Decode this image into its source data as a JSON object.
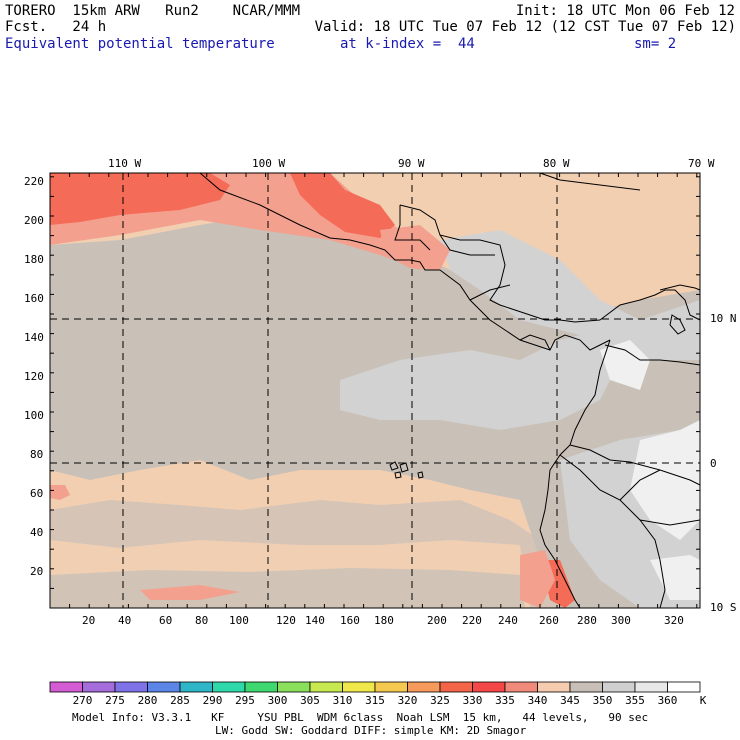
{
  "header": {
    "left_line1": "TORERO  15km ARW   Run2    NCAR/MMM",
    "left_line2": "Fcst.   24 h",
    "right_line1": "Init: 18 UTC Mon 06 Feb 12",
    "right_line2": "Valid: 18 UTC Tue 07 Feb 12 (12 CST Tue 07 Feb 12)",
    "field": "Equivalent potential temperature",
    "level": "at k-index =  44",
    "smooth": "sm= 2"
  },
  "map": {
    "lon_labels": [
      "110 W",
      "100 W",
      "90 W",
      "80 W",
      "70 W"
    ],
    "lat_labels": [
      "10 N",
      "0",
      "10 S"
    ],
    "y_ticks": [
      "220",
      "200",
      "180",
      "160",
      "140",
      "120",
      "100",
      "80",
      "60",
      "40",
      "20"
    ],
    "x_ticks": [
      "20",
      "40",
      "60",
      "80",
      "100",
      "120",
      "140",
      "160",
      "180",
      "200",
      "220",
      "240",
      "260",
      "280",
      "300",
      "320"
    ]
  },
  "colorbar": {
    "unit": "K",
    "labels": [
      "270",
      "275",
      "280",
      "285",
      "290",
      "295",
      "300",
      "305",
      "310",
      "315",
      "320",
      "325",
      "330",
      "335",
      "340",
      "345",
      "350",
      "355",
      "360"
    ],
    "colors": [
      "#d35bd3",
      "#a56cdc",
      "#7f72e8",
      "#5b86e8",
      "#2fb5c8",
      "#2fd8a8",
      "#3fd870",
      "#8ae05a",
      "#c8e850",
      "#f0e84a",
      "#f5c850",
      "#f59a5a",
      "#f46448",
      "#f44848",
      "#f08a7a",
      "#f5ccb0",
      "#c8c0b8",
      "#d0d0d0",
      "#e8e8e8",
      "#ffffff"
    ]
  },
  "footer": {
    "line1": "Model Info: V3.3.1   KF     YSU PBL  WDM 6class  Noah LSM  15 km,   44 levels,   90 sec",
    "line2": "LW: Godd SW: Goddard DIFF: simple KM: 2D Smagor"
  }
}
